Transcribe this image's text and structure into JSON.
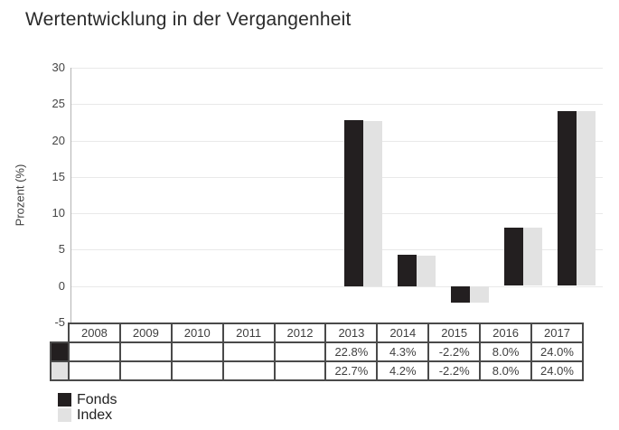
{
  "chart_data": {
    "type": "bar",
    "title": "Wertentwicklung in der Vergangenheit",
    "ylabel": "Prozent (%)",
    "categories": [
      "2008",
      "2009",
      "2010",
      "2011",
      "2012",
      "2013",
      "2014",
      "2015",
      "2016",
      "2017"
    ],
    "series": [
      {
        "name": "Fonds",
        "color": "#231f20",
        "values": [
          null,
          null,
          null,
          null,
          null,
          22.8,
          4.3,
          -2.2,
          8.0,
          24.0
        ],
        "labels": [
          "",
          "",
          "",
          "",
          "",
          "22.8%",
          "4.3%",
          "-2.2%",
          "8.0%",
          "24.0%"
        ]
      },
      {
        "name": "Index",
        "color": "#e2e2e2",
        "values": [
          null,
          null,
          null,
          null,
          null,
          22.7,
          4.2,
          -2.2,
          8.0,
          24.0
        ],
        "labels": [
          "",
          "",
          "",
          "",
          "",
          "22.7%",
          "4.2%",
          "-2.2%",
          "8.0%",
          "24.0%"
        ]
      }
    ],
    "ylim": [
      -5,
      30
    ],
    "yticks": [
      30,
      25,
      20,
      15,
      10,
      5,
      0,
      -5
    ],
    "grid": true,
    "legend_position": "bottom-left"
  }
}
